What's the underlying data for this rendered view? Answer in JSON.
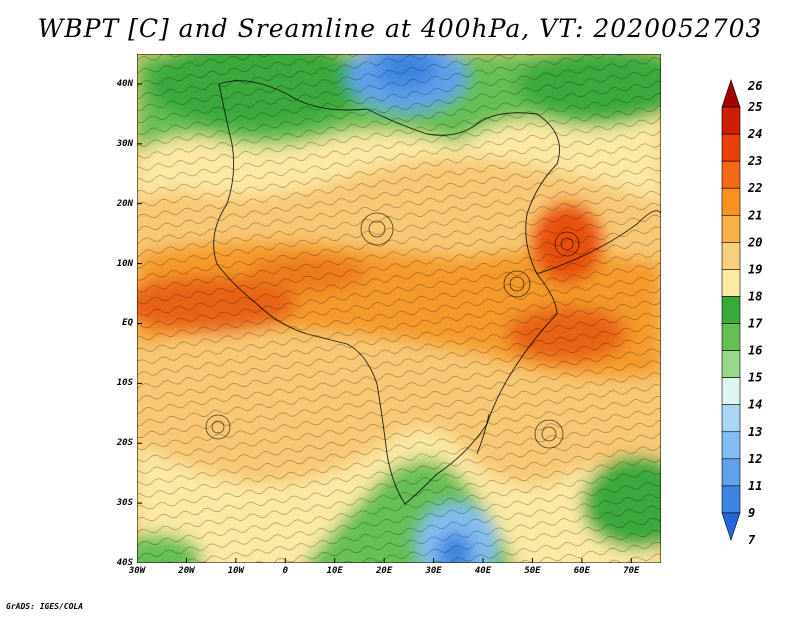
{
  "title": "WBPT [C] and Sreamline at 400hPa, VT: 2020052703",
  "credit": "GrADS: IGES/COLA",
  "map": {
    "y_labels": [
      "40N",
      "30N",
      "20N",
      "10N",
      "EQ",
      "10S",
      "20S",
      "30S",
      "40S"
    ],
    "x_labels": [
      "30W",
      "20W",
      "10W",
      "0",
      "10E",
      "20E",
      "30E",
      "40E",
      "50E",
      "60E",
      "70E"
    ],
    "lat_range": [
      -40,
      45
    ],
    "lon_range": [
      -30,
      76
    ]
  },
  "colorbar": {
    "labels": [
      "26",
      "25",
      "24",
      "23",
      "22",
      "21",
      "20",
      "19",
      "18",
      "17",
      "16",
      "15",
      "14",
      "13",
      "12",
      "11",
      "9",
      "7"
    ],
    "colors": [
      "#a50000",
      "#cd1f00",
      "#e8400b",
      "#f26a16",
      "#f9921e",
      "#f7b247",
      "#f8cf7c",
      "#fbe9a4",
      "#3aa93c",
      "#66bf55",
      "#97d88b",
      "#ddf6f2",
      "#aad6f6",
      "#83bdf1",
      "#5fa1eb",
      "#3d85e0",
      "#2466d8"
    ]
  },
  "chart_data": {
    "type": "heatmap",
    "title": "WBPT [C] and Sreamline at 400hPa, VT: 2020052703",
    "variable": "Wet-bulb potential temperature (C) with streamlines at 400hPa",
    "valid_time": "2020052703",
    "x_range": [
      -30,
      76
    ],
    "y_range": [
      -40,
      45
    ],
    "xticks": [
      "30W",
      "20W",
      "10W",
      "0",
      "10E",
      "20E",
      "30E",
      "40E",
      "50E",
      "60E",
      "70E"
    ],
    "yticks": [
      "40N",
      "30N",
      "20N",
      "10N",
      "EQ",
      "10S",
      "20S",
      "30S",
      "40S"
    ],
    "colorbar_levels": [
      7,
      9,
      11,
      12,
      13,
      14,
      15,
      16,
      17,
      18,
      19,
      20,
      21,
      22,
      23,
      24,
      25,
      26
    ],
    "features": [
      {
        "label": "cold trough",
        "lon": 22,
        "lat": 44,
        "value": 13
      },
      {
        "label": "cold trough",
        "lon": 34,
        "lat": -36,
        "value": 13
      },
      {
        "label": "warm max",
        "lon": -24,
        "lat": 4,
        "value": 23
      },
      {
        "label": "warm max",
        "lon": 55,
        "lat": 13,
        "value": 23
      },
      {
        "label": "warm max",
        "lon": 52,
        "lat": -4,
        "value": 23
      },
      {
        "label": "anticyclone",
        "lon": 20,
        "lat": 15
      },
      {
        "label": "cyclone",
        "lon": -14,
        "lat": -17
      },
      {
        "label": "cyclone",
        "lon": 52,
        "lat": -18
      }
    ]
  }
}
